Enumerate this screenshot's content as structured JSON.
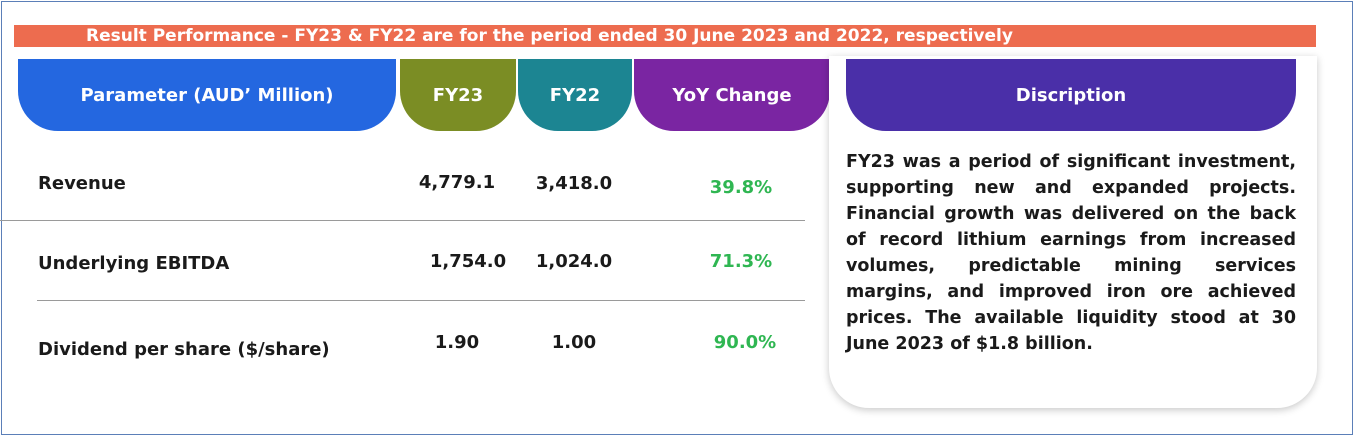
{
  "banner": "Result Performance - FY23 & FY22 are for the period ended 30 June 2023 and 2022, respectively",
  "headers": {
    "parameter": "Parameter (AUD’ Million)",
    "fy23": "FY23",
    "fy22": "FY22",
    "yoy": "YoY Change",
    "description": "Discription"
  },
  "rows": [
    {
      "label": "Revenue",
      "fy23": "4,779.1",
      "fy22": "3,418.0",
      "yoy": "39.8%"
    },
    {
      "label": "Underlying EBITDA",
      "fy23": "1,754.0",
      "fy22": "1,024.0",
      "yoy": "71.3%"
    },
    {
      "label": "Dividend per share ($/share)",
      "fy23": "1.90",
      "fy22": "1.00",
      "yoy": "90.0%"
    }
  ],
  "description": "FY23 was a period of significant investment, supporting new and expanded projects. Financial growth was delivered on the back of record lithium earnings from increased volumes, predictable mining services margins, and improved iron ore achieved prices. The available liquidity stood at 30 June 2023 of $1.8 billion.",
  "colors": {
    "banner": "#ed6c4f",
    "parameter_header": "#2467e0",
    "fy23_header": "#7b8d24",
    "fy22_header": "#1c8592",
    "yoy_header": "#7a25a2",
    "description_header": "#4a2fa8",
    "positive_change": "#2fb652"
  }
}
